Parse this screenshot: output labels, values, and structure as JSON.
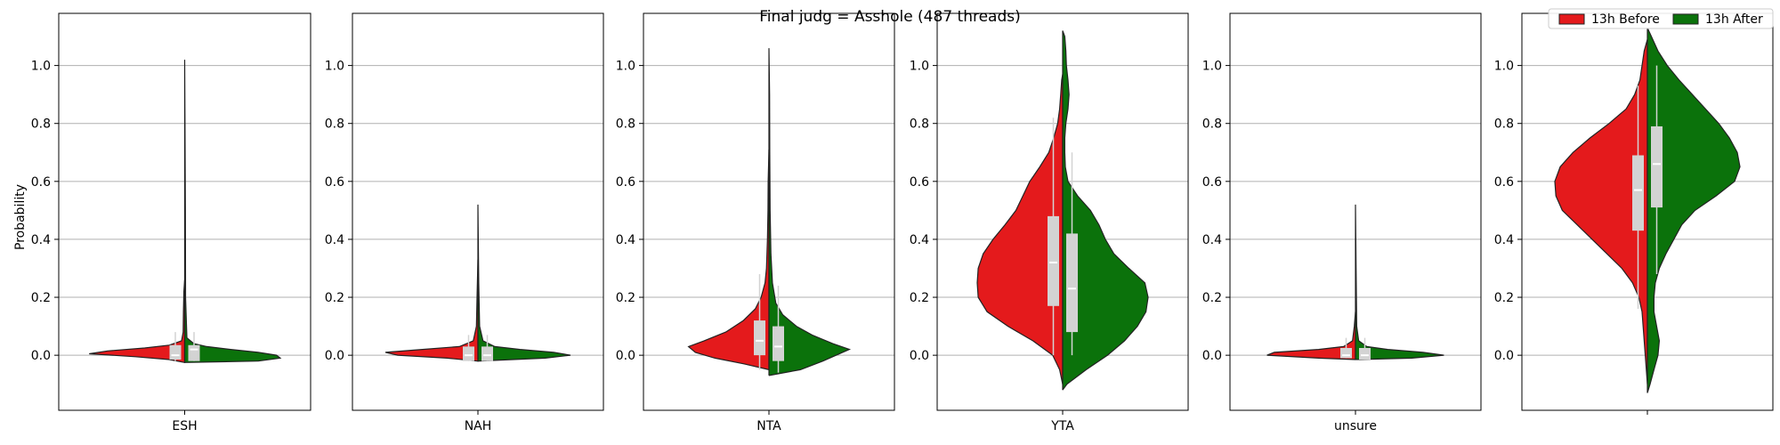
{
  "figure": {
    "title": "Final judg = Asshole (487 threads)",
    "ylabel": "Probability"
  },
  "legend": {
    "placement": "top-right",
    "entries": [
      {
        "label": "13h Before",
        "color": "#e41a1c"
      },
      {
        "label": "13h After",
        "color": "#0b720b"
      }
    ]
  },
  "colors": {
    "before": "#e41a1c",
    "after": "#0b720b",
    "box": "#d3d3d3",
    "median": "#ffffff",
    "grid": "#b0b0b0"
  },
  "chart_data": [
    {
      "type": "violin",
      "category": "ESH",
      "ylim": [
        -0.19,
        1.18
      ],
      "yticks": [
        "0.0",
        "0.2",
        "0.4",
        "0.6",
        "0.8",
        "1.0"
      ],
      "grid": "horizontal",
      "split": true,
      "series": [
        {
          "name": "13h Before",
          "side": "left",
          "width": 0.95,
          "profile": [
            [
              -0.025,
              0.0
            ],
            [
              -0.015,
              0.1
            ],
            [
              -0.005,
              0.32
            ],
            [
              0.005,
              0.62
            ],
            [
              0.015,
              0.5
            ],
            [
              0.025,
              0.26
            ],
            [
              0.035,
              0.1
            ],
            [
              0.05,
              0.02
            ],
            [
              0.08,
              0.01
            ],
            [
              0.15,
              0.008
            ],
            [
              0.22,
              0.005
            ],
            [
              0.26,
              0.0
            ]
          ],
          "box": {
            "q1": -0.015,
            "median": 0.0,
            "q3": 0.035,
            "whisker_low": -0.02,
            "whisker_high": 0.08
          }
        },
        {
          "name": "13h After",
          "side": "right",
          "width": 0.95,
          "profile": [
            [
              -0.025,
              0.0
            ],
            [
              -0.02,
              0.4
            ],
            [
              -0.01,
              0.52
            ],
            [
              0.0,
              0.5
            ],
            [
              0.01,
              0.4
            ],
            [
              0.02,
              0.25
            ],
            [
              0.03,
              0.12
            ],
            [
              0.04,
              0.05
            ],
            [
              0.06,
              0.012
            ],
            [
              0.2,
              0.005
            ],
            [
              0.5,
              0.004
            ],
            [
              1.02,
              0.0
            ]
          ],
          "box": {
            "q1": -0.02,
            "median": 0.02,
            "q3": 0.035,
            "whisker_low": -0.02,
            "whisker_high": 0.08
          }
        }
      ]
    },
    {
      "type": "violin",
      "category": "NAH",
      "ylim": [
        -0.19,
        1.18
      ],
      "yticks": [
        "0.0",
        "0.2",
        "0.4",
        "0.6",
        "0.8",
        "1.0"
      ],
      "grid": "horizontal",
      "split": true,
      "series": [
        {
          "name": "13h Before",
          "side": "left",
          "width": 0.92,
          "profile": [
            [
              -0.02,
              0.0
            ],
            [
              -0.01,
              0.2
            ],
            [
              0.0,
              0.52
            ],
            [
              0.01,
              0.6
            ],
            [
              0.02,
              0.36
            ],
            [
              0.03,
              0.12
            ],
            [
              0.05,
              0.03
            ],
            [
              0.1,
              0.01
            ],
            [
              0.2,
              0.006
            ],
            [
              0.33,
              0.0
            ]
          ],
          "box": {
            "q1": -0.02,
            "median": 0.0,
            "q3": 0.03,
            "whisker_low": -0.02,
            "whisker_high": 0.07
          }
        },
        {
          "name": "13h After",
          "side": "right",
          "width": 0.92,
          "profile": [
            [
              -0.02,
              0.0
            ],
            [
              -0.01,
              0.4
            ],
            [
              0.0,
              0.55
            ],
            [
              0.01,
              0.45
            ],
            [
              0.02,
              0.25
            ],
            [
              0.03,
              0.1
            ],
            [
              0.05,
              0.03
            ],
            [
              0.1,
              0.01
            ],
            [
              0.25,
              0.005
            ],
            [
              0.52,
              0.0
            ]
          ],
          "box": {
            "q1": -0.02,
            "median": 0.0,
            "q3": 0.03,
            "whisker_low": -0.02,
            "whisker_high": 0.07
          }
        }
      ]
    },
    {
      "type": "violin",
      "category": "NTA",
      "ylim": [
        -0.19,
        1.18
      ],
      "yticks": [
        "0.0",
        "0.2",
        "0.4",
        "0.6",
        "0.8",
        "1.0"
      ],
      "grid": "horizontal",
      "split": true,
      "series": [
        {
          "name": "13h Before",
          "side": "left",
          "width": 0.8,
          "profile": [
            [
              -0.05,
              0.0
            ],
            [
              -0.03,
              0.25
            ],
            [
              -0.01,
              0.55
            ],
            [
              0.01,
              0.75
            ],
            [
              0.03,
              0.82
            ],
            [
              0.05,
              0.66
            ],
            [
              0.08,
              0.44
            ],
            [
              0.12,
              0.26
            ],
            [
              0.16,
              0.14
            ],
            [
              0.2,
              0.08
            ],
            [
              0.25,
              0.04
            ],
            [
              0.3,
              0.025
            ],
            [
              0.4,
              0.015
            ],
            [
              0.5,
              0.01
            ],
            [
              0.6,
              0.008
            ],
            [
              0.71,
              0.0
            ]
          ],
          "box": {
            "q1": 0.0,
            "median": 0.05,
            "q3": 0.12,
            "whisker_low": -0.05,
            "whisker_high": 0.28
          }
        },
        {
          "name": "13h After",
          "side": "right",
          "width": 0.8,
          "profile": [
            [
              -0.07,
              0.0
            ],
            [
              -0.05,
              0.32
            ],
            [
              -0.02,
              0.55
            ],
            [
              0.01,
              0.75
            ],
            [
              0.02,
              0.82
            ],
            [
              0.04,
              0.65
            ],
            [
              0.07,
              0.44
            ],
            [
              0.1,
              0.28
            ],
            [
              0.14,
              0.14
            ],
            [
              0.18,
              0.07
            ],
            [
              0.25,
              0.035
            ],
            [
              0.35,
              0.02
            ],
            [
              0.5,
              0.012
            ],
            [
              0.7,
              0.008
            ],
            [
              0.9,
              0.006
            ],
            [
              1.06,
              0.0
            ]
          ],
          "box": {
            "q1": -0.02,
            "median": 0.03,
            "q3": 0.1,
            "whisker_low": -0.06,
            "whisker_high": 0.24
          }
        }
      ]
    },
    {
      "type": "violin",
      "category": "YTA",
      "ylim": [
        -0.19,
        1.18
      ],
      "yticks": [
        "0.0",
        "0.2",
        "0.4",
        "0.6",
        "0.8",
        "1.0"
      ],
      "grid": "horizontal",
      "split": true,
      "series": [
        {
          "name": "13h Before",
          "side": "left",
          "width": 0.85,
          "profile": [
            [
              -0.1,
              0.0
            ],
            [
              -0.05,
              0.03
            ],
            [
              0.0,
              0.1
            ],
            [
              0.05,
              0.3
            ],
            [
              0.1,
              0.55
            ],
            [
              0.15,
              0.76
            ],
            [
              0.2,
              0.85
            ],
            [
              0.25,
              0.86
            ],
            [
              0.3,
              0.85
            ],
            [
              0.35,
              0.8
            ],
            [
              0.4,
              0.7
            ],
            [
              0.45,
              0.58
            ],
            [
              0.5,
              0.47
            ],
            [
              0.55,
              0.4
            ],
            [
              0.6,
              0.33
            ],
            [
              0.65,
              0.23
            ],
            [
              0.7,
              0.14
            ],
            [
              0.75,
              0.09
            ],
            [
              0.8,
              0.05
            ],
            [
              0.85,
              0.03
            ],
            [
              0.9,
              0.02
            ],
            [
              0.95,
              0.01
            ],
            [
              0.97,
              0.0
            ]
          ],
          "box": {
            "q1": 0.17,
            "median": 0.32,
            "q3": 0.48,
            "whisker_low": 0.0,
            "whisker_high": 0.82
          }
        },
        {
          "name": "13h After",
          "side": "right",
          "width": 0.85,
          "profile": [
            [
              -0.12,
              0.0
            ],
            [
              -0.1,
              0.04
            ],
            [
              -0.05,
              0.22
            ],
            [
              0.0,
              0.42
            ],
            [
              0.05,
              0.58
            ],
            [
              0.1,
              0.7
            ],
            [
              0.15,
              0.78
            ],
            [
              0.2,
              0.8
            ],
            [
              0.25,
              0.77
            ],
            [
              0.3,
              0.62
            ],
            [
              0.35,
              0.48
            ],
            [
              0.4,
              0.4
            ],
            [
              0.45,
              0.34
            ],
            [
              0.5,
              0.26
            ],
            [
              0.55,
              0.14
            ],
            [
              0.6,
              0.05
            ],
            [
              0.65,
              0.025
            ],
            [
              0.7,
              0.02
            ],
            [
              0.75,
              0.02
            ],
            [
              0.8,
              0.03
            ],
            [
              0.85,
              0.05
            ],
            [
              0.9,
              0.06
            ],
            [
              0.95,
              0.05
            ],
            [
              1.0,
              0.035
            ],
            [
              1.05,
              0.03
            ],
            [
              1.1,
              0.02
            ],
            [
              1.12,
              0.0
            ]
          ],
          "box": {
            "q1": 0.08,
            "median": 0.23,
            "q3": 0.42,
            "whisker_low": 0.0,
            "whisker_high": 0.7
          }
        }
      ]
    },
    {
      "type": "violin",
      "category": "unsure",
      "ylim": [
        -0.19,
        1.18
      ],
      "yticks": [
        "0.0",
        "0.2",
        "0.4",
        "0.6",
        "0.8",
        "1.0"
      ],
      "grid": "horizontal",
      "split": true,
      "series": [
        {
          "name": "13h Before",
          "side": "left",
          "width": 0.88,
          "profile": [
            [
              -0.015,
              0.0
            ],
            [
              -0.01,
              0.25
            ],
            [
              0.0,
              0.6
            ],
            [
              0.01,
              0.55
            ],
            [
              0.02,
              0.25
            ],
            [
              0.03,
              0.08
            ],
            [
              0.05,
              0.02
            ],
            [
              0.1,
              0.008
            ],
            [
              0.15,
              0.0
            ]
          ],
          "box": {
            "q1": -0.01,
            "median": 0.0,
            "q3": 0.025,
            "whisker_low": -0.01,
            "whisker_high": 0.06
          }
        },
        {
          "name": "13h After",
          "side": "right",
          "width": 0.88,
          "profile": [
            [
              -0.015,
              0.0
            ],
            [
              -0.01,
              0.35
            ],
            [
              0.0,
              0.55
            ],
            [
              0.01,
              0.42
            ],
            [
              0.02,
              0.2
            ],
            [
              0.03,
              0.07
            ],
            [
              0.05,
              0.02
            ],
            [
              0.1,
              0.008
            ],
            [
              0.3,
              0.004
            ],
            [
              0.52,
              0.0
            ]
          ],
          "box": {
            "q1": -0.015,
            "median": 0.0,
            "q3": 0.025,
            "whisker_low": -0.015,
            "whisker_high": 0.06
          }
        }
      ]
    },
    {
      "type": "violin",
      "category": "",
      "ylim": [
        -0.19,
        1.18
      ],
      "yticks": [
        "0.0",
        "0.2",
        "0.4",
        "0.6",
        "0.8",
        "1.0"
      ],
      "grid": "horizontal",
      "split": true,
      "series": [
        {
          "name": "13h Before",
          "side": "left",
          "width": 0.92,
          "profile": [
            [
              -0.1,
              0.0
            ],
            [
              0.0,
              0.02
            ],
            [
              0.1,
              0.04
            ],
            [
              0.15,
              0.05
            ],
            [
              0.2,
              0.08
            ],
            [
              0.25,
              0.14
            ],
            [
              0.3,
              0.24
            ],
            [
              0.35,
              0.38
            ],
            [
              0.4,
              0.52
            ],
            [
              0.45,
              0.66
            ],
            [
              0.5,
              0.8
            ],
            [
              0.55,
              0.86
            ],
            [
              0.6,
              0.87
            ],
            [
              0.65,
              0.82
            ],
            [
              0.7,
              0.7
            ],
            [
              0.75,
              0.54
            ],
            [
              0.8,
              0.36
            ],
            [
              0.85,
              0.2
            ],
            [
              0.9,
              0.12
            ],
            [
              0.95,
              0.07
            ],
            [
              1.0,
              0.05
            ],
            [
              1.05,
              0.03
            ],
            [
              1.09,
              0.0
            ]
          ],
          "box": {
            "q1": 0.43,
            "median": 0.57,
            "q3": 0.69,
            "whisker_low": 0.16,
            "whisker_high": 0.93
          }
        },
        {
          "name": "13h After",
          "side": "right",
          "width": 0.92,
          "profile": [
            [
              -0.13,
              0.0
            ],
            [
              -0.1,
              0.02
            ],
            [
              -0.05,
              0.05
            ],
            [
              0.0,
              0.08
            ],
            [
              0.05,
              0.09
            ],
            [
              0.1,
              0.07
            ],
            [
              0.15,
              0.05
            ],
            [
              0.2,
              0.05
            ],
            [
              0.25,
              0.06
            ],
            [
              0.3,
              0.09
            ],
            [
              0.35,
              0.14
            ],
            [
              0.4,
              0.2
            ],
            [
              0.45,
              0.26
            ],
            [
              0.5,
              0.36
            ],
            [
              0.55,
              0.52
            ],
            [
              0.6,
              0.66
            ],
            [
              0.65,
              0.7
            ],
            [
              0.7,
              0.68
            ],
            [
              0.75,
              0.62
            ],
            [
              0.8,
              0.54
            ],
            [
              0.85,
              0.44
            ],
            [
              0.9,
              0.34
            ],
            [
              0.95,
              0.24
            ],
            [
              1.0,
              0.15
            ],
            [
              1.05,
              0.08
            ],
            [
              1.1,
              0.03
            ],
            [
              1.13,
              0.0
            ]
          ],
          "box": {
            "q1": 0.51,
            "median": 0.66,
            "q3": 0.79,
            "whisker_low": 0.28,
            "whisker_high": 1.0
          }
        }
      ]
    }
  ]
}
